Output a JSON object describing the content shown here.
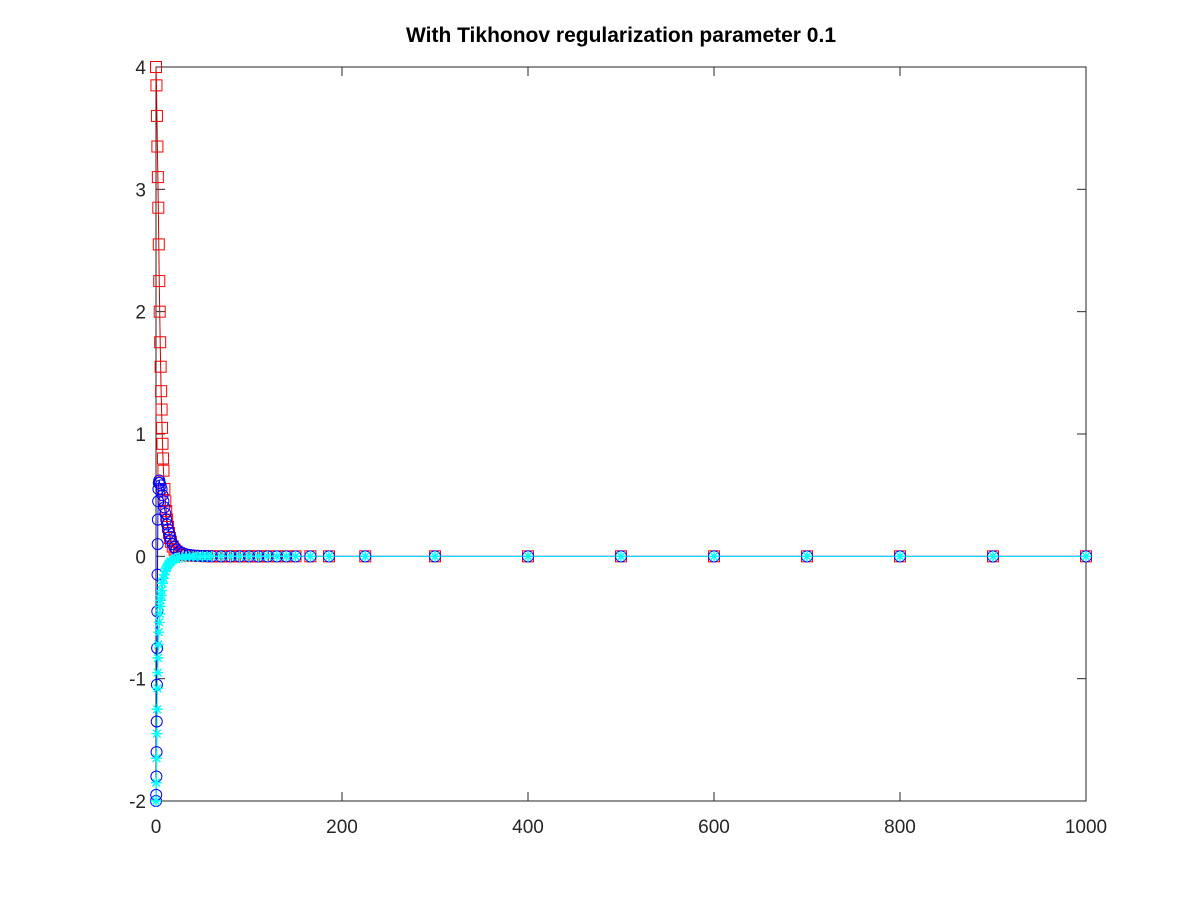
{
  "chart_data": {
    "type": "scatter",
    "title": "With Tikhonov regularization parameter 0.1",
    "xlabel": "",
    "ylabel": "",
    "xlim": [
      0,
      1000
    ],
    "ylim": [
      -2,
      4
    ],
    "x_ticks": [
      "0",
      "200",
      "400",
      "600",
      "800",
      "1000"
    ],
    "y_ticks": [
      "-2",
      "-1",
      "0",
      "1",
      "2",
      "3",
      "4"
    ],
    "grid": false,
    "legend": "none",
    "colors": {
      "red_series": "#ff0000",
      "blue_series": "#0000ff",
      "cyan_series": "#00ffff",
      "line": "#d00000",
      "axes": "#262626"
    },
    "series": [
      {
        "marker": "square",
        "color": "#ff0000",
        "x": [
          0,
          0.5,
          1,
          1.5,
          2,
          2.5,
          3,
          3.5,
          4,
          4.5,
          5,
          5.5,
          6,
          6.5,
          7,
          7.5,
          8,
          9,
          10,
          11,
          12,
          13,
          14,
          15,
          16,
          18,
          20,
          22,
          25,
          28,
          32,
          36,
          40,
          45,
          50,
          55,
          60,
          65,
          70,
          75,
          80,
          85,
          90,
          95,
          100,
          105,
          110,
          115,
          120,
          130,
          140,
          150,
          166,
          186,
          225,
          300,
          400,
          500,
          600,
          700,
          800,
          900,
          1000
        ],
        "y": [
          4.0,
          3.85,
          3.6,
          3.35,
          3.1,
          2.85,
          2.55,
          2.25,
          2.0,
          1.75,
          1.55,
          1.35,
          1.2,
          1.05,
          0.92,
          0.8,
          0.7,
          0.55,
          0.45,
          0.37,
          0.3,
          0.24,
          0.19,
          0.15,
          0.12,
          0.08,
          0.055,
          0.04,
          0.025,
          0.015,
          0.01,
          0.006,
          0.004,
          0.003,
          0.002,
          0.001,
          0,
          0,
          0,
          0,
          0,
          0,
          0,
          0,
          0,
          0,
          0,
          0,
          0,
          0,
          0,
          0,
          0,
          0,
          0,
          0,
          0,
          0,
          0,
          0,
          0,
          0,
          0
        ]
      },
      {
        "marker": "circle",
        "color": "#0000ff",
        "x": [
          0,
          0.2,
          0.4,
          0.6,
          0.8,
          1,
          1.2,
          1.4,
          1.6,
          1.8,
          2,
          2.3,
          2.6,
          3,
          3.5,
          4,
          5,
          6,
          7,
          8,
          9,
          10,
          11,
          12,
          13,
          14,
          15,
          16,
          18,
          20,
          22,
          25,
          28,
          32,
          36,
          40,
          45,
          50,
          55,
          60,
          70,
          80,
          90,
          100,
          110,
          120,
          130,
          140,
          150,
          166,
          186,
          225,
          300,
          400,
          500,
          600,
          700,
          800,
          900,
          1000
        ],
        "y": [
          -2.0,
          -1.95,
          -1.8,
          -1.6,
          -1.35,
          -1.05,
          -0.75,
          -0.45,
          -0.15,
          0.1,
          0.3,
          0.45,
          0.55,
          0.6,
          0.62,
          0.6,
          0.58,
          0.55,
          0.5,
          0.45,
          0.4,
          0.35,
          0.3,
          0.26,
          0.22,
          0.19,
          0.16,
          0.13,
          0.1,
          0.075,
          0.055,
          0.04,
          0.028,
          0.018,
          0.012,
          0.008,
          0.005,
          0.003,
          0.002,
          0.001,
          0,
          0,
          0,
          0,
          0,
          0,
          0,
          0,
          0,
          0,
          0,
          0,
          0,
          0,
          0,
          0,
          0,
          0,
          0,
          0
        ]
      },
      {
        "marker": "star",
        "color": "#00ffff",
        "x": [
          0,
          0.3,
          0.6,
          0.9,
          1.2,
          1.5,
          1.8,
          2.1,
          2.5,
          3,
          3.5,
          4,
          4.5,
          5,
          5.5,
          6,
          7,
          8,
          9,
          10,
          11,
          12,
          13,
          14,
          15,
          16,
          18,
          20,
          22,
          25,
          28,
          32,
          36,
          40,
          45,
          50,
          55,
          60,
          70,
          80,
          90,
          100,
          110,
          120,
          130,
          140,
          150,
          166,
          186,
          225,
          300,
          400,
          500,
          600,
          700,
          800,
          900,
          1000
        ],
        "y": [
          -2.0,
          -1.85,
          -1.65,
          -1.45,
          -1.25,
          -1.08,
          -0.95,
          -0.83,
          -0.72,
          -0.62,
          -0.54,
          -0.47,
          -0.41,
          -0.36,
          -0.32,
          -0.28,
          -0.22,
          -0.18,
          -0.15,
          -0.12,
          -0.1,
          -0.085,
          -0.07,
          -0.06,
          -0.05,
          -0.042,
          -0.03,
          -0.022,
          -0.016,
          -0.01,
          -0.007,
          -0.004,
          -0.003,
          -0.002,
          -0.001,
          0,
          0,
          0,
          0,
          0,
          0,
          0,
          0,
          0,
          0,
          0,
          0,
          0,
          0,
          0,
          0,
          0,
          0,
          0,
          0,
          0,
          0,
          0
        ]
      }
    ]
  }
}
